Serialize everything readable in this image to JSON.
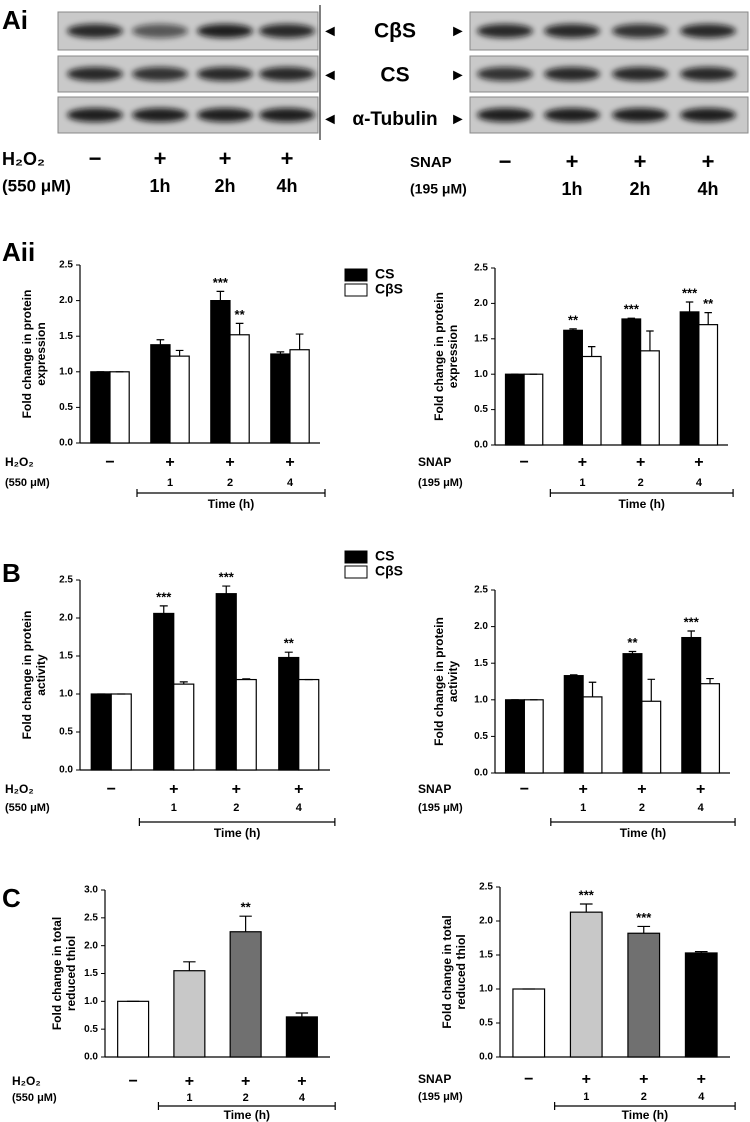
{
  "panels": [
    "Ai",
    "Aii",
    "B",
    "C"
  ],
  "blot": {
    "bands": [
      "CβS",
      "CS",
      "α-Tubulin"
    ],
    "left": {
      "treatment_label": "H₂O₂",
      "dose_label": "(550 μM)",
      "signs": [
        "−",
        "+",
        "+",
        "+"
      ],
      "times": [
        "1h",
        "2h",
        "4h"
      ]
    },
    "right": {
      "treatment_label": "SNAP",
      "dose_label": "(195 μM)",
      "signs": [
        "−",
        "+",
        "+",
        "+"
      ],
      "times": [
        "1h",
        "2h",
        "4h"
      ]
    }
  },
  "chart_data": [
    {
      "type": "bar",
      "ylabel": [
        "Fold change in protein",
        "expression"
      ],
      "ylim": [
        0,
        2.5
      ],
      "yticks": [
        {
          "value": 0,
          "label": "0.0"
        },
        0.5,
        {
          "value": 1,
          "label": "1.0"
        },
        1.5,
        {
          "value": 2,
          "label": "2.0"
        },
        2.5
      ],
      "treatment_label": "H₂O₂",
      "dose_label": "(550 μM)",
      "signs": [
        "−",
        "+",
        "+",
        "+"
      ],
      "categories": [
        null,
        "1",
        "2",
        "4"
      ],
      "xlabel": "Time (h)",
      "legend": true,
      "series": [
        {
          "name": "CS",
          "color": "#000000",
          "values": [
            1.0,
            1.38,
            2.0,
            1.25
          ],
          "errors": [
            0,
            0.07,
            0.13,
            0.03
          ],
          "annotations": [
            null,
            null,
            "***",
            null
          ]
        },
        {
          "name": "CβS",
          "color": "#ffffff",
          "values": [
            1.0,
            1.22,
            1.52,
            1.31
          ],
          "errors": [
            0,
            0.08,
            0.16,
            0.22
          ],
          "annotations": [
            null,
            null,
            "**",
            null
          ]
        }
      ]
    },
    {
      "type": "bar",
      "ylabel": [
        "Fold change in protein",
        "expression"
      ],
      "ylim": [
        0,
        2.5
      ],
      "yticks": [
        {
          "value": 0,
          "label": "0.0"
        },
        0.5,
        {
          "value": 1,
          "label": "1.0"
        },
        1.5,
        {
          "value": 2,
          "label": "2.0"
        },
        2.5
      ],
      "treatment_label": "SNAP",
      "dose_label": "(195 μM)",
      "signs": [
        "−",
        "+",
        "+",
        "+"
      ],
      "categories": [
        null,
        "1",
        "2",
        "4"
      ],
      "xlabel": "Time (h)",
      "legend": false,
      "series": [
        {
          "name": "CS",
          "color": "#000000",
          "values": [
            1.0,
            1.62,
            1.78,
            1.88
          ],
          "errors": [
            0,
            0.02,
            0.01,
            0.14
          ],
          "annotations": [
            null,
            "**",
            "***",
            "***"
          ]
        },
        {
          "name": "CβS",
          "color": "#ffffff",
          "values": [
            1.0,
            1.25,
            1.33,
            1.7
          ],
          "errors": [
            0,
            0.14,
            0.28,
            0.17
          ],
          "annotations": [
            null,
            null,
            null,
            "**"
          ]
        }
      ]
    },
    {
      "type": "bar",
      "ylabel": [
        "Fold change in protein",
        "activity"
      ],
      "ylim": [
        0,
        2.5
      ],
      "yticks": [
        {
          "value": 0,
          "label": "0.0"
        },
        0.5,
        {
          "value": 1,
          "label": "1.0"
        },
        1.5,
        {
          "value": 2,
          "label": "2.0"
        },
        2.5
      ],
      "treatment_label": "H₂O₂",
      "dose_label": "(550 μM)",
      "signs": [
        "−",
        "+",
        "+",
        "+"
      ],
      "categories": [
        null,
        "1",
        "2",
        "4"
      ],
      "xlabel": "Time (h)",
      "legend": true,
      "series": [
        {
          "name": "CS",
          "color": "#000000",
          "values": [
            1.0,
            2.06,
            2.32,
            1.48
          ],
          "errors": [
            0,
            0.1,
            0.1,
            0.07
          ],
          "annotations": [
            null,
            "***",
            "***",
            "**"
          ]
        },
        {
          "name": "CβS",
          "color": "#ffffff",
          "values": [
            1.0,
            1.13,
            1.19,
            1.19
          ],
          "errors": [
            0,
            0.03,
            0.01,
            0
          ],
          "annotations": [
            null,
            null,
            null,
            null
          ]
        }
      ]
    },
    {
      "type": "bar",
      "ylabel": [
        "Fold change in protein",
        "activity"
      ],
      "ylim": [
        0,
        2.5
      ],
      "yticks": [
        {
          "value": 0,
          "label": "0.0"
        },
        0.5,
        {
          "value": 1,
          "label": "1.0"
        },
        1.5,
        {
          "value": 2,
          "label": "2.0"
        },
        2.5
      ],
      "treatment_label": "SNAP",
      "dose_label": "(195 μM)",
      "signs": [
        "−",
        "+",
        "+",
        "+"
      ],
      "categories": [
        null,
        "1",
        "2",
        "4"
      ],
      "xlabel": "Time (h)",
      "legend": false,
      "series": [
        {
          "name": "CS",
          "color": "#000000",
          "values": [
            1.0,
            1.33,
            1.63,
            1.85
          ],
          "errors": [
            0,
            0.01,
            0.03,
            0.09
          ],
          "annotations": [
            null,
            null,
            "**",
            "***"
          ]
        },
        {
          "name": "CβS",
          "color": "#ffffff",
          "values": [
            1.0,
            1.04,
            0.98,
            1.22
          ],
          "errors": [
            0,
            0.2,
            0.3,
            0.07
          ],
          "annotations": [
            null,
            null,
            null,
            null
          ]
        }
      ]
    },
    {
      "type": "bar",
      "ylabel": [
        "Fold change in total",
        "reduced thiol"
      ],
      "ylim": [
        0,
        3
      ],
      "yticks": [
        {
          "value": 0,
          "label": "0.0"
        },
        0.5,
        {
          "value": 1,
          "label": "1.0"
        },
        1.5,
        {
          "value": 2,
          "label": "2.0"
        },
        2.5,
        {
          "value": 3,
          "label": "3.0"
        }
      ],
      "treatment_label": "H₂O₂",
      "dose_label": "(550 μM)",
      "signs": [
        "−",
        "+",
        "+",
        "+"
      ],
      "categories": [
        null,
        "1",
        "2",
        "4"
      ],
      "xlabel": "Time (h)",
      "legend": false,
      "series": [
        {
          "colors": [
            "#ffffff",
            "#c8c8c8",
            "#707070",
            "#000000"
          ],
          "values": [
            1.0,
            1.55,
            2.25,
            0.72
          ],
          "errors": [
            0,
            0.16,
            0.28,
            0.07
          ],
          "annotations": [
            null,
            null,
            "**",
            null
          ]
        }
      ]
    },
    {
      "type": "bar",
      "ylabel": [
        "Fold change in total",
        "reduced thiol"
      ],
      "ylim": [
        0,
        2.5
      ],
      "yticks": [
        {
          "value": 0,
          "label": "0.0"
        },
        0.5,
        {
          "value": 1,
          "label": "1.0"
        },
        1.5,
        {
          "value": 2,
          "label": "2.0"
        },
        2.5
      ],
      "treatment_label": "SNAP",
      "dose_label": "(195 μM)",
      "signs": [
        "−",
        "+",
        "+",
        "+"
      ],
      "categories": [
        null,
        "1",
        "2",
        "4"
      ],
      "xlabel": "Time (h)",
      "legend": false,
      "series": [
        {
          "colors": [
            "#ffffff",
            "#c8c8c8",
            "#707070",
            "#000000"
          ],
          "values": [
            1.0,
            2.13,
            1.82,
            1.53
          ],
          "errors": [
            0,
            0.12,
            0.1,
            0.02
          ],
          "annotations": [
            null,
            "***",
            "***",
            null
          ]
        }
      ]
    }
  ]
}
